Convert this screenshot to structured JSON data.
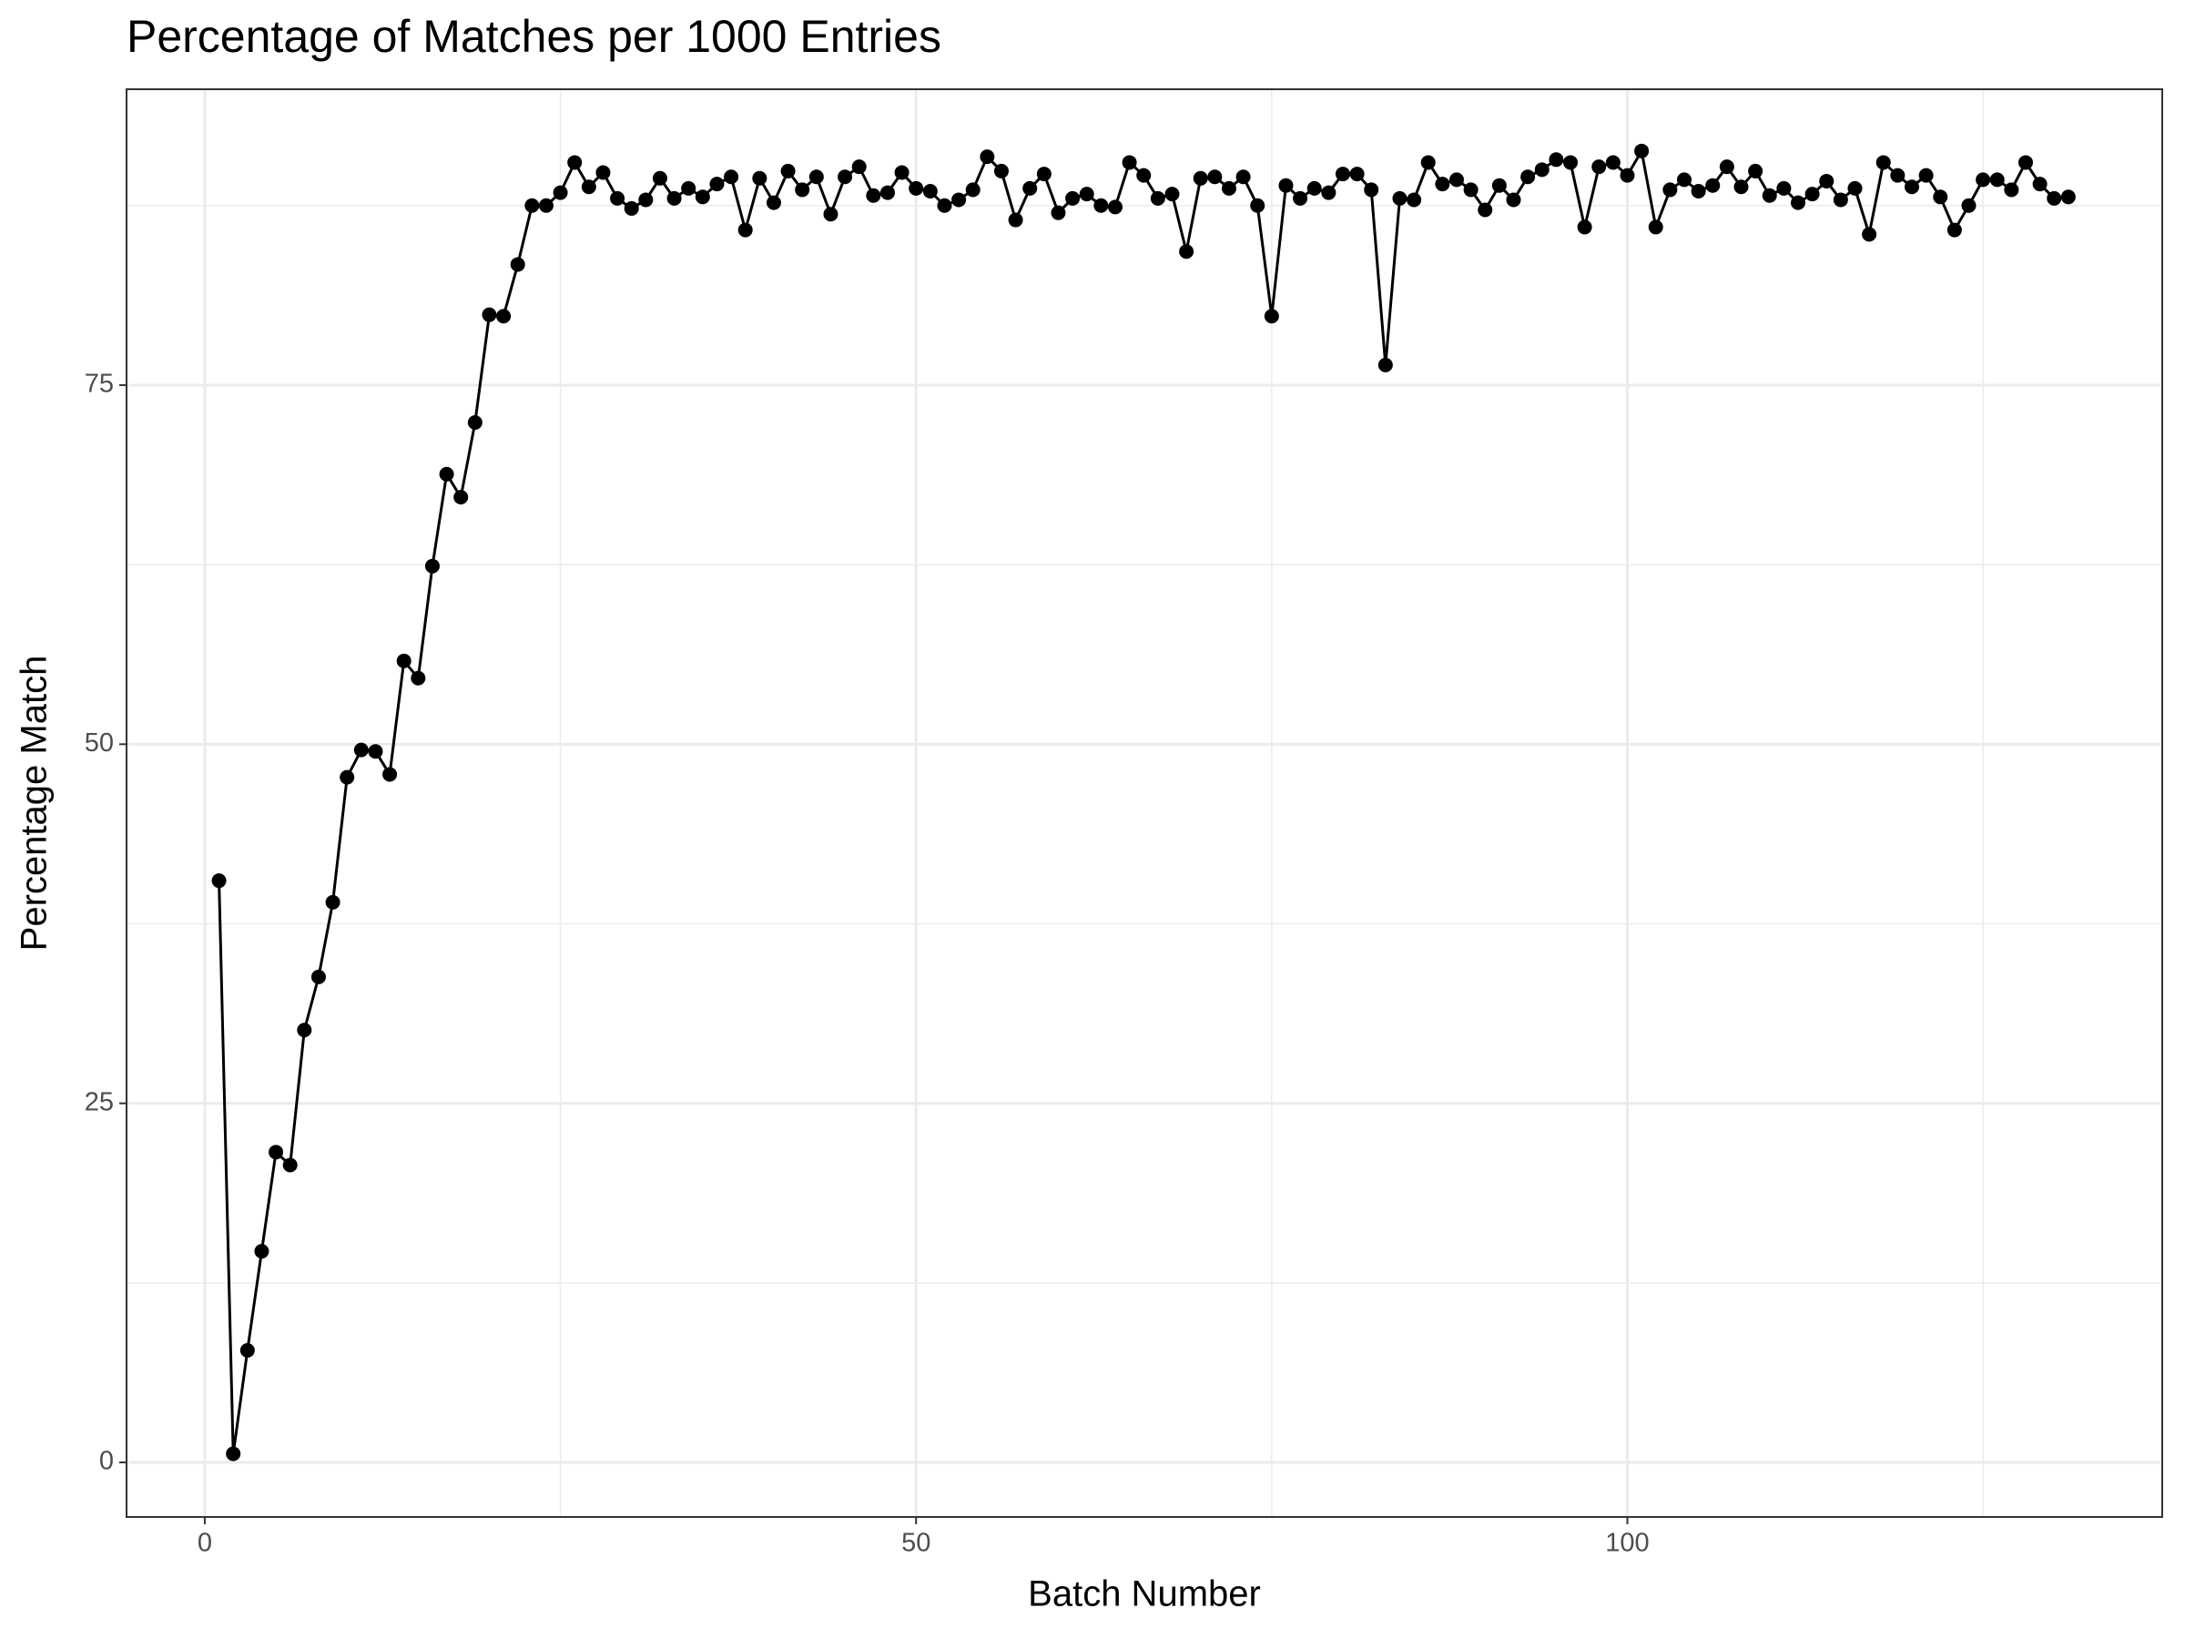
{
  "chart_data": {
    "type": "line",
    "title": "Percentage of Matches per 1000 Entries",
    "x_label": "Batch Number",
    "y_label": "Percentage Match",
    "x": [
      1,
      2,
      3,
      4,
      5,
      6,
      7,
      8,
      9,
      10,
      11,
      12,
      13,
      14,
      15,
      16,
      17,
      18,
      19,
      20,
      21,
      22,
      23,
      24,
      25,
      26,
      27,
      28,
      29,
      30,
      31,
      32,
      33,
      34,
      35,
      36,
      37,
      38,
      39,
      40,
      41,
      42,
      43,
      44,
      45,
      46,
      47,
      48,
      49,
      50,
      51,
      52,
      53,
      54,
      55,
      56,
      57,
      58,
      59,
      60,
      61,
      62,
      63,
      64,
      65,
      66,
      67,
      68,
      69,
      70,
      71,
      72,
      73,
      74,
      75,
      76,
      77,
      78,
      79,
      80,
      81,
      82,
      83,
      84,
      85,
      86,
      87,
      88,
      89,
      90,
      91,
      92,
      93,
      94,
      95,
      96,
      97,
      98,
      99,
      100,
      101,
      102,
      103,
      104,
      105,
      106,
      107,
      108,
      109,
      110,
      111,
      112,
      113,
      114,
      115,
      116,
      117,
      118,
      119,
      120,
      121,
      122,
      123,
      124,
      125,
      126,
      127,
      128,
      129,
      130,
      131
    ],
    "series": [
      {
        "name": "Percentage Match",
        "color": "#000000",
        "values": [
          40.5,
          0.6,
          7.8,
          14.7,
          21.6,
          20.7,
          30.1,
          33.8,
          39.0,
          47.7,
          49.6,
          49.5,
          47.9,
          55.8,
          54.6,
          62.4,
          68.8,
          67.2,
          72.4,
          79.9,
          79.8,
          83.4,
          87.5,
          87.5,
          88.4,
          90.5,
          88.8,
          89.8,
          88.0,
          87.3,
          87.9,
          89.4,
          88.0,
          88.7,
          88.1,
          89.0,
          89.5,
          85.8,
          89.4,
          87.7,
          89.9,
          88.6,
          89.5,
          86.9,
          89.5,
          90.2,
          88.2,
          88.4,
          89.8,
          88.7,
          88.5,
          87.5,
          87.9,
          88.6,
          90.9,
          89.9,
          86.5,
          88.7,
          89.7,
          87.0,
          88.0,
          88.3,
          87.5,
          87.4,
          90.5,
          89.6,
          88.0,
          88.3,
          84.3,
          89.4,
          89.5,
          88.7,
          89.5,
          87.5,
          79.8,
          88.9,
          88.0,
          88.7,
          88.4,
          89.7,
          89.7,
          88.6,
          76.4,
          88.0,
          87.9,
          90.5,
          89.0,
          89.3,
          88.6,
          87.2,
          88.9,
          87.9,
          89.5,
          90.0,
          90.7,
          90.5,
          86.0,
          90.2,
          90.5,
          89.6,
          91.3,
          86.0,
          88.6,
          89.3,
          88.5,
          88.9,
          90.2,
          88.8,
          89.9,
          88.2,
          88.7,
          87.7,
          88.3,
          89.2,
          87.9,
          88.7,
          85.5,
          90.5,
          89.6,
          88.8,
          89.6,
          88.1,
          85.8,
          87.5,
          89.3,
          89.3,
          88.6,
          90.5,
          89.0,
          88.0,
          88.1
        ]
      }
    ],
    "xlim": [
      -5.5,
      137.6
    ],
    "ylim": [
      -3.8,
      95.6
    ],
    "xticks": [
      0,
      50,
      100
    ],
    "yticks": [
      0,
      25,
      50,
      75
    ],
    "grid": true
  }
}
